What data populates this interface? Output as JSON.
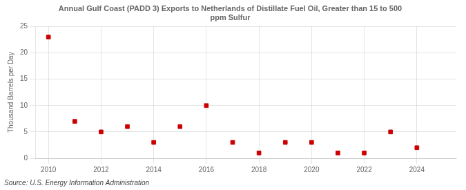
{
  "chart_data": {
    "type": "scatter",
    "title": "Annual Gulf Coast (PADD 3) Exports to Netherlands of Distillate Fuel Oil, Greater than 15 to 500\nppm Sulfur",
    "ylabel": "Thousand Barrels per Day",
    "annotations": [
      "Source: U.S. Energy Information Administration"
    ],
    "x": [
      2010,
      2011,
      2012,
      2013,
      2014,
      2015,
      2016,
      2017,
      2018,
      2019,
      2020,
      2021,
      2022,
      2023,
      2024
    ],
    "values": [
      23,
      7,
      5,
      6,
      3,
      6,
      10,
      3,
      1,
      3,
      3,
      1,
      1,
      5,
      2
    ],
    "color": "#cc0000",
    "marker": "square",
    "xlim": [
      2009.5,
      2025.5
    ],
    "ylim": [
      0,
      25
    ],
    "xticks": [
      2010,
      2012,
      2014,
      2016,
      2018,
      2020,
      2022,
      2024
    ],
    "yticks": [
      0,
      5,
      10,
      15,
      20,
      25
    ],
    "grid": true
  }
}
